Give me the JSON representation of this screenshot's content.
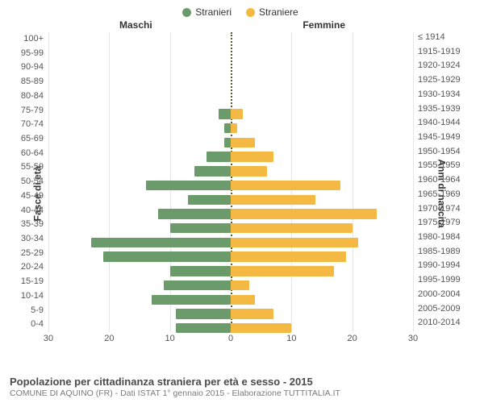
{
  "chart": {
    "type": "population-pyramid",
    "legend": {
      "male": {
        "label": "Stranieri",
        "color": "#6b9b6b"
      },
      "female": {
        "label": "Straniere",
        "color": "#f4b942"
      }
    },
    "headers": {
      "male": "Maschi",
      "female": "Femmine"
    },
    "axis_left_title": "Fasce di età",
    "axis_right_title": "Anni di nascita",
    "x": {
      "max": 30,
      "ticks_left": [
        30,
        20,
        10,
        0
      ],
      "ticks_right": [
        0,
        10,
        20,
        30
      ]
    },
    "background_color": "#ffffff",
    "grid_color": "#e5e5e5",
    "center_line_color": "#5a5a30",
    "label_fontsize": 11,
    "rows": [
      {
        "age": "100+",
        "year": "≤ 1914",
        "m": 0,
        "f": 0
      },
      {
        "age": "95-99",
        "year": "1915-1919",
        "m": 0,
        "f": 0
      },
      {
        "age": "90-94",
        "year": "1920-1924",
        "m": 0,
        "f": 0
      },
      {
        "age": "85-89",
        "year": "1925-1929",
        "m": 0,
        "f": 0
      },
      {
        "age": "80-84",
        "year": "1930-1934",
        "m": 0,
        "f": 0
      },
      {
        "age": "75-79",
        "year": "1935-1939",
        "m": 2,
        "f": 2
      },
      {
        "age": "70-74",
        "year": "1940-1944",
        "m": 1,
        "f": 1
      },
      {
        "age": "65-69",
        "year": "1945-1949",
        "m": 1,
        "f": 4
      },
      {
        "age": "60-64",
        "year": "1950-1954",
        "m": 4,
        "f": 7
      },
      {
        "age": "55-59",
        "year": "1955-1959",
        "m": 6,
        "f": 6
      },
      {
        "age": "50-54",
        "year": "1960-1964",
        "m": 14,
        "f": 18
      },
      {
        "age": "45-49",
        "year": "1965-1969",
        "m": 7,
        "f": 14
      },
      {
        "age": "40-44",
        "year": "1970-1974",
        "m": 12,
        "f": 24
      },
      {
        "age": "35-39",
        "year": "1975-1979",
        "m": 10,
        "f": 20
      },
      {
        "age": "30-34",
        "year": "1980-1984",
        "m": 23,
        "f": 21
      },
      {
        "age": "25-29",
        "year": "1985-1989",
        "m": 21,
        "f": 19
      },
      {
        "age": "20-24",
        "year": "1990-1994",
        "m": 10,
        "f": 17
      },
      {
        "age": "15-19",
        "year": "1995-1999",
        "m": 11,
        "f": 3
      },
      {
        "age": "10-14",
        "year": "2000-2004",
        "m": 13,
        "f": 4
      },
      {
        "age": "5-9",
        "year": "2005-2009",
        "m": 9,
        "f": 7
      },
      {
        "age": "0-4",
        "year": "2010-2014",
        "m": 9,
        "f": 10
      }
    ]
  },
  "title": "Popolazione per cittadinanza straniera per età e sesso - 2015",
  "subtitle": "COMUNE DI AQUINO (FR) - Dati ISTAT 1° gennaio 2015 - Elaborazione TUTTITALIA.IT"
}
